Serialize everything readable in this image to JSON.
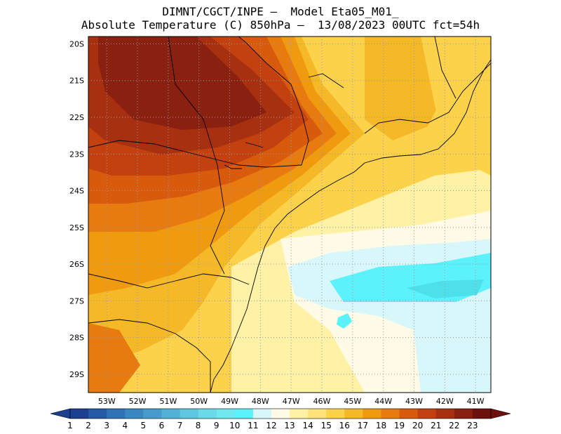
{
  "title": {
    "line1": "DIMNT/CGCT/INPE —  Model Eta05_M01_",
    "line2": "Absolute Temperature (C) 850hPa —  13/08/2023 00UTC fct=54h"
  },
  "axes": {
    "lat_labels": [
      "20S",
      "21S",
      "22S",
      "23S",
      "24S",
      "25S",
      "26S",
      "27S",
      "28S",
      "29S"
    ],
    "lon_labels": [
      "53W",
      "52W",
      "51W",
      "50W",
      "49W",
      "48W",
      "47W",
      "46W",
      "45W",
      "44W",
      "43W",
      "42W",
      "41W"
    ]
  },
  "colorbar": {
    "labels": [
      "1",
      "2",
      "3",
      "4",
      "5",
      "6",
      "7",
      "8",
      "9",
      "10",
      "11",
      "12",
      "13",
      "14",
      "15",
      "16",
      "17",
      "18",
      "19",
      "20",
      "21",
      "22",
      "23"
    ],
    "colors": [
      "#1d3f8f",
      "#245aa5",
      "#2f72b6",
      "#3a88c2",
      "#469dcc",
      "#52b2d6",
      "#5ec6df",
      "#6ad9e8",
      "#70e8f0",
      "#5cf2fb",
      "#d7f7fb",
      "#fffbe6",
      "#fff2a6",
      "#ffe27a",
      "#fbd24a",
      "#f5b928",
      "#f09a10",
      "#e87b10",
      "#d85a0c",
      "#c2410e",
      "#a6300f",
      "#8a200f",
      "#6e100b"
    ]
  },
  "map": {
    "lon_range": [
      -53.6,
      -40.5
    ],
    "lat_range": [
      -29.5,
      -19.8
    ],
    "palette": {
      "t11": "#d7f7fb",
      "t10": "#5cf2fb",
      "t9": "#4ee0ea",
      "t12": "#fffbe6",
      "t13": "#fff2a6",
      "t14": "#ffe27a",
      "t15": "#fbd24a",
      "t16": "#f5b928",
      "t17": "#f09a10",
      "t18": "#e87b10",
      "t19": "#d85a0c",
      "t20": "#c2410e",
      "t21": "#a6300f",
      "t22": "#8a200f"
    }
  }
}
